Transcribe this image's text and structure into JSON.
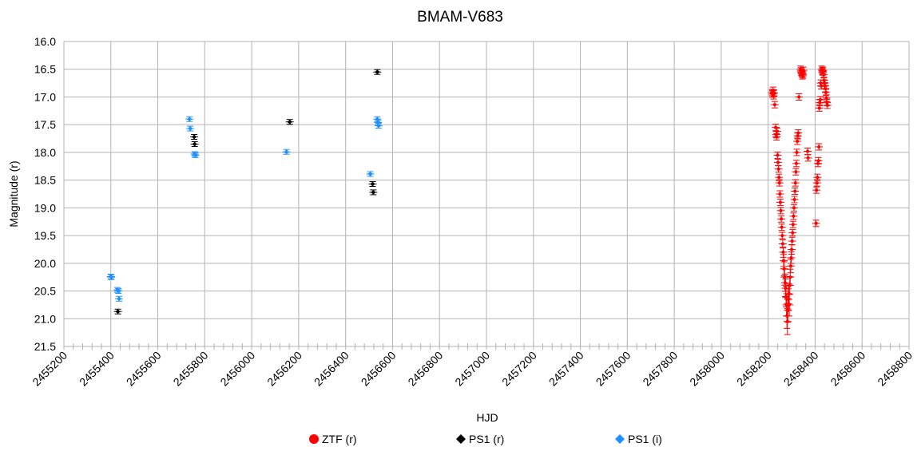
{
  "chart_data": {
    "type": "scatter",
    "title": "BMAM-V683",
    "xlabel": "HJD",
    "ylabel": "Magnitude (r)",
    "xlim": [
      2455200,
      2458800
    ],
    "ylim": [
      16.0,
      21.5
    ],
    "y_inverted": true,
    "grid": true,
    "x_ticks": [
      "2455200",
      "2455400",
      "2455600",
      "2455800",
      "2456000",
      "2456200",
      "2456400",
      "2456600",
      "2456800",
      "2457000",
      "2457200",
      "2457400",
      "2457600",
      "2457800",
      "2458000",
      "2458200",
      "2458400",
      "2458600",
      "2458800"
    ],
    "y_ticks": [
      "16.0",
      "16.5",
      "17.0",
      "17.5",
      "18.0",
      "18.5",
      "19.0",
      "19.5",
      "20.0",
      "20.5",
      "21.0",
      "21.5"
    ],
    "legend_position": "bottom",
    "series": [
      {
        "name": "ZTF (r)",
        "color": "#ff0000",
        "marker": "circle",
        "points": [
          [
            2458217,
            16.92
          ],
          [
            2458219,
            16.95
          ],
          [
            2458221,
            16.88
          ],
          [
            2458223,
            16.98
          ],
          [
            2458225,
            16.93
          ],
          [
            2458228,
            17.14
          ],
          [
            2458232,
            17.55
          ],
          [
            2458234,
            17.68
          ],
          [
            2458236,
            17.72
          ],
          [
            2458238,
            17.62
          ],
          [
            2458240,
            18.05
          ],
          [
            2458242,
            18.18
          ],
          [
            2458244,
            18.3
          ],
          [
            2458246,
            18.45
          ],
          [
            2458248,
            18.55
          ],
          [
            2458250,
            18.75
          ],
          [
            2458252,
            18.9
          ],
          [
            2458254,
            19.05
          ],
          [
            2458256,
            19.2
          ],
          [
            2458258,
            19.35
          ],
          [
            2458260,
            19.5
          ],
          [
            2458262,
            19.65
          ],
          [
            2458264,
            19.8
          ],
          [
            2458266,
            19.95
          ],
          [
            2458268,
            20.1
          ],
          [
            2458270,
            20.25
          ],
          [
            2458272,
            20.35
          ],
          [
            2458274,
            20.45
          ],
          [
            2458276,
            20.6
          ],
          [
            2458278,
            20.75
          ],
          [
            2458280,
            20.95
          ],
          [
            2458282,
            21.05
          ],
          [
            2458284,
            20.85
          ],
          [
            2458286,
            20.65
          ],
          [
            2458288,
            20.55
          ],
          [
            2458290,
            20.75
          ],
          [
            2458292,
            20.4
          ],
          [
            2458294,
            20.25
          ],
          [
            2458296,
            20.05
          ],
          [
            2458298,
            19.9
          ],
          [
            2458300,
            19.75
          ],
          [
            2458302,
            19.6
          ],
          [
            2458304,
            19.45
          ],
          [
            2458306,
            19.3
          ],
          [
            2458308,
            19.15
          ],
          [
            2458310,
            19.0
          ],
          [
            2458312,
            18.85
          ],
          [
            2458314,
            18.7
          ],
          [
            2458316,
            18.55
          ],
          [
            2458318,
            18.35
          ],
          [
            2458320,
            18.2
          ],
          [
            2458322,
            18.0
          ],
          [
            2458324,
            17.8
          ],
          [
            2458326,
            17.7
          ],
          [
            2458328,
            17.65
          ],
          [
            2458331,
            17.0
          ],
          [
            2458338,
            16.5
          ],
          [
            2458340,
            16.53
          ],
          [
            2458342,
            16.55
          ],
          [
            2458344,
            16.58
          ],
          [
            2458346,
            16.62
          ],
          [
            2458348,
            16.6
          ],
          [
            2458350,
            16.52
          ],
          [
            2458368,
            17.98
          ],
          [
            2458370,
            18.1
          ],
          [
            2458404,
            19.28
          ],
          [
            2458406,
            18.68
          ],
          [
            2458408,
            18.55
          ],
          [
            2458410,
            18.45
          ],
          [
            2458412,
            18.2
          ],
          [
            2458414,
            18.15
          ],
          [
            2458416,
            17.9
          ],
          [
            2458418,
            17.2
          ],
          [
            2458420,
            17.1
          ],
          [
            2458422,
            17.05
          ],
          [
            2458424,
            16.75
          ],
          [
            2458426,
            16.8
          ],
          [
            2458428,
            16.5
          ],
          [
            2458430,
            16.53
          ],
          [
            2458432,
            16.55
          ],
          [
            2458434,
            16.52
          ],
          [
            2458436,
            16.6
          ],
          [
            2458438,
            16.7
          ],
          [
            2458440,
            16.75
          ],
          [
            2458442,
            16.8
          ],
          [
            2458444,
            16.85
          ],
          [
            2458446,
            16.92
          ],
          [
            2458448,
            17.02
          ],
          [
            2458450,
            17.1
          ],
          [
            2458452,
            17.15
          ]
        ]
      },
      {
        "name": "PS1 (r)",
        "color": "#000000",
        "marker": "diamond",
        "points": [
          [
            2455430,
            20.87
          ],
          [
            2455755,
            17.72
          ],
          [
            2455757,
            17.85
          ],
          [
            2456162,
            17.45
          ],
          [
            2456515,
            18.57
          ],
          [
            2456518,
            18.72
          ],
          [
            2456535,
            16.55
          ]
        ]
      },
      {
        "name": "PS1 (i)",
        "color": "#1e90ff",
        "marker": "diamond",
        "points": [
          [
            2455400,
            20.24
          ],
          [
            2455402,
            20.25
          ],
          [
            2455428,
            20.48
          ],
          [
            2455432,
            20.5
          ],
          [
            2455435,
            20.64
          ],
          [
            2455735,
            17.4
          ],
          [
            2455738,
            17.57
          ],
          [
            2455757,
            18.03
          ],
          [
            2455760,
            18.05
          ],
          [
            2456148,
            17.99
          ],
          [
            2456505,
            18.39
          ],
          [
            2456535,
            17.4
          ],
          [
            2456538,
            17.46
          ],
          [
            2456540,
            17.52
          ]
        ]
      }
    ]
  }
}
